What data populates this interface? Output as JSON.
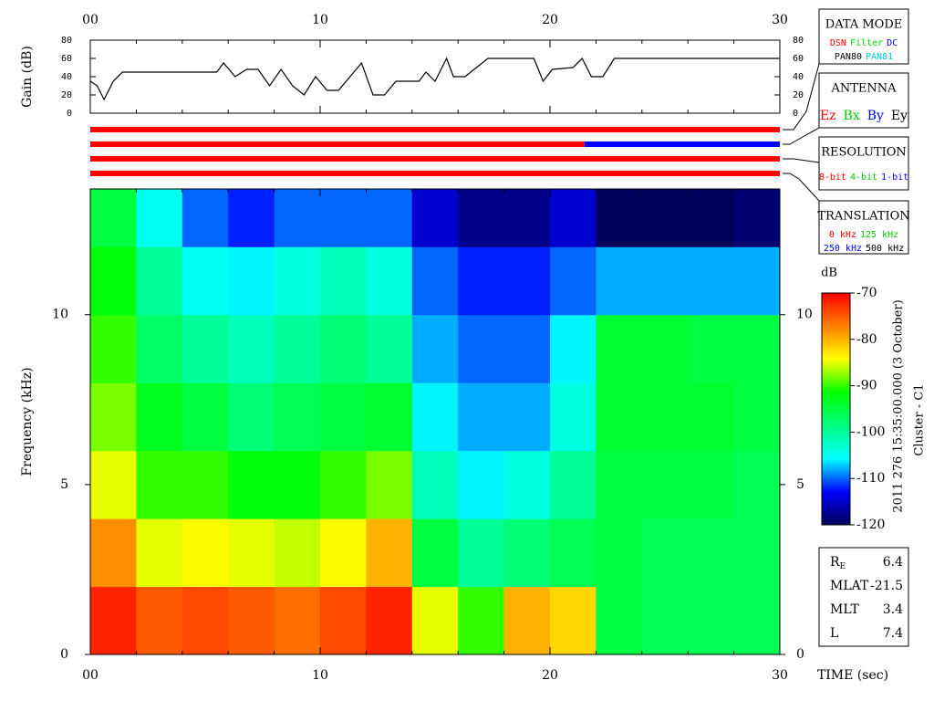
{
  "chart_data": [
    {
      "type": "line",
      "ylabel": "Gain (dB)",
      "x": [
        0,
        0.3,
        0.6,
        1.0,
        1.4,
        5.5,
        5.8,
        6.3,
        6.8,
        7.3,
        7.8,
        8.3,
        8.8,
        9.3,
        9.8,
        10.3,
        10.8,
        11.3,
        11.8,
        12.3,
        12.8,
        13.3,
        13.8,
        14.3,
        14.6,
        15.0,
        15.5,
        15.8,
        16.3,
        17.3,
        17.6,
        19.3,
        19.7,
        20.1,
        21.0,
        21.4,
        21.8,
        22.3,
        22.8,
        30
      ],
      "series": [
        {
          "color": "#000000",
          "values": [
            35,
            30,
            15,
            35,
            45,
            45,
            55,
            40,
            48,
            48,
            30,
            48,
            30,
            20,
            40,
            25,
            25,
            40,
            55,
            20,
            20,
            35,
            35,
            35,
            45,
            35,
            60,
            40,
            40,
            60,
            60,
            60,
            35,
            48,
            50,
            60,
            40,
            40,
            60,
            60
          ]
        }
      ],
      "xlim": [
        0,
        30
      ],
      "ylim": [
        0,
        80
      ],
      "yticks": [
        0,
        20,
        40,
        60,
        80
      ],
      "xticks": [
        {
          "value": 0,
          "label": "00"
        },
        10,
        20,
        30
      ],
      "xminorticks": [
        2,
        4,
        6,
        8,
        12,
        14,
        16,
        18,
        22,
        24,
        26,
        28
      ]
    },
    {
      "type": "heatmap",
      "ylabel": "Frequency (kHz)",
      "xlabel": "TIME (sec)",
      "x_edges": [
        0,
        2,
        4,
        6,
        8,
        10,
        12,
        14,
        16,
        18,
        20,
        22,
        24,
        26,
        28,
        30
      ],
      "y_edges": [
        0,
        2,
        4,
        6,
        8,
        10,
        12,
        13.7
      ],
      "values": [
        [
          -72,
          -78,
          -85,
          -88,
          -90,
          -92,
          -95
        ],
        [
          -75,
          -85,
          -90,
          -93,
          -97,
          -100,
          -105
        ],
        [
          -74,
          -84,
          -90,
          -95,
          -100,
          -105,
          -110
        ],
        [
          -75,
          -85,
          -92,
          -98,
          -102,
          -106,
          -112
        ],
        [
          -76,
          -86,
          -92,
          -96,
          -100,
          -104,
          -110
        ],
        [
          -74,
          -84,
          -90,
          -95,
          -98,
          -102,
          -110
        ],
        [
          -72,
          -80,
          -88,
          -94,
          -100,
          -104,
          -110
        ],
        [
          -85,
          -95,
          -102,
          -106,
          -108,
          -110,
          -115
        ],
        [
          -90,
          -100,
          -106,
          -108,
          -110,
          -112,
          -118
        ],
        [
          -80,
          -98,
          -104,
          -108,
          -110,
          -112,
          -118
        ],
        [
          -82,
          -96,
          -100,
          -104,
          -106,
          -110,
          -115
        ],
        [
          -95,
          -95,
          -95,
          -94,
          -94,
          -108,
          -120
        ],
        [
          -96,
          -96,
          -95,
          -94,
          -94,
          -108,
          -120
        ],
        [
          -96,
          -96,
          -95,
          -94,
          -95,
          -108,
          -120
        ],
        [
          -96,
          -96,
          -96,
          -95,
          -95,
          -108,
          -119
        ]
      ],
      "xlim": [
        0,
        30
      ],
      "ylim": [
        0,
        13.7
      ],
      "yticks": [
        0,
        5,
        10
      ],
      "xticks": [
        {
          "value": 0,
          "label": "00"
        },
        10,
        20,
        30
      ],
      "xminorticks": [
        2,
        4,
        6,
        8,
        12,
        14,
        16,
        18,
        22,
        24,
        26,
        28
      ],
      "colorbar": {
        "title": "dB",
        "clim": [
          -120,
          -70
        ],
        "ticks": [
          -70,
          -80,
          -90,
          -100,
          -110,
          -120
        ],
        "colors": [
          "#00005a",
          "#0000ff",
          "#00ffff",
          "#00ff80",
          "#00ff00",
          "#ffff00",
          "#ff8000",
          "#ff0000"
        ]
      }
    }
  ],
  "status_bars": [
    {
      "segments": [
        {
          "start": 0,
          "end": 30,
          "color": "#ff0000"
        }
      ]
    },
    {
      "segments": [
        {
          "start": 0,
          "end": 21.5,
          "color": "#ff0000"
        },
        {
          "start": 21.5,
          "end": 30,
          "color": "#0000ff"
        }
      ]
    },
    {
      "segments": [
        {
          "start": 0,
          "end": 30,
          "color": "#ff0000"
        }
      ]
    },
    {
      "segments": [
        {
          "start": 0,
          "end": 30,
          "color": "#ff0000"
        }
      ]
    }
  ],
  "legend_boxes": [
    {
      "title": "DATA MODE",
      "rows": [
        [
          {
            "text": "DSN",
            "color": "#ff0000"
          },
          {
            "text": "Filter",
            "color": "#00dd00"
          },
          {
            "text": "DC",
            "color": "#0000ff"
          }
        ],
        [
          {
            "text": "PAN80",
            "color": "#000000"
          },
          {
            "text": "PAN81",
            "color": "#00cccc"
          }
        ]
      ]
    },
    {
      "title": "ANTENNA",
      "rows": [
        [
          {
            "text": "Ez",
            "color": "#ff0000"
          },
          {
            "text": "Bx",
            "color": "#00cc00"
          },
          {
            "text": "By",
            "color": "#0000ff"
          },
          {
            "text": "Ey",
            "color": "#000000"
          }
        ]
      ]
    },
    {
      "title": "RESOLUTION",
      "rows": [
        [
          {
            "text": "8-bit",
            "color": "#ff0000"
          },
          {
            "text": "4-bit",
            "color": "#00cc00"
          },
          {
            "text": "1-bit",
            "color": "#0000ff"
          }
        ]
      ]
    },
    {
      "title": "TRANSLATION",
      "rows": [
        [
          {
            "text": "0 kHz",
            "color": "#ff0000"
          },
          {
            "text": "125 kHz",
            "color": "#00cc00"
          }
        ],
        [
          {
            "text": "250 kHz",
            "color": "#0000ff"
          },
          {
            "text": "500 kHz",
            "color": "#000000"
          }
        ]
      ]
    }
  ],
  "timestamp": "2011 276 15:35:00.000 (3 October)",
  "spacecraft": "Cluster - C1",
  "info": [
    {
      "label": "R",
      "sub": "E",
      "value": 6.4
    },
    {
      "label": "MLAT",
      "value": -21.5
    },
    {
      "label": "MLT",
      "value": 3.4
    },
    {
      "label": "L",
      "value": 7.4
    }
  ]
}
